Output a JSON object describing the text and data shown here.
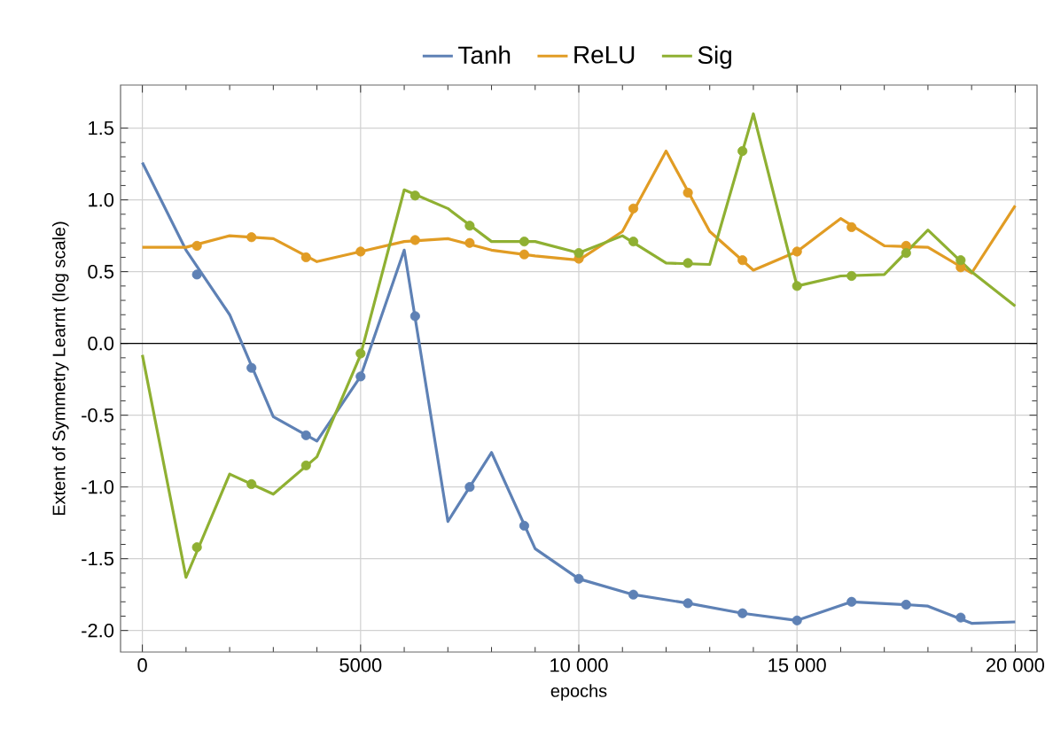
{
  "chart_data": {
    "type": "line",
    "xlabel": "epochs",
    "ylabel": "Extent of Symmetry Learnt (log scale)",
    "xlim": [
      -500,
      20500
    ],
    "ylim": [
      -2.15,
      1.8
    ],
    "xticks": [
      0,
      5000,
      {
        "value": 10000,
        "label": "10 000"
      },
      {
        "value": 15000,
        "label": "15 000"
      },
      {
        "value": 20000,
        "label": "20 000"
      }
    ],
    "yticks": [
      {
        "value": -2.0,
        "label": "-2.0"
      },
      -1.5,
      {
        "value": -1.0,
        "label": "-1.0"
      },
      -0.5,
      {
        "value": 0,
        "label": "0.0"
      },
      0.5,
      {
        "value": 1.0,
        "label": "1.0"
      },
      1.5
    ],
    "grid": true,
    "legend": "top",
    "line_style": "solid",
    "ref_lines": [
      {
        "axis": "y",
        "value": 0,
        "color": "#000000"
      }
    ],
    "series": [
      {
        "name": "Tanh",
        "color": "#5e81b5",
        "marker": "none",
        "x": [
          0,
          1000,
          2000,
          3000,
          4000,
          5000,
          6000,
          7000,
          8000,
          9000,
          10000,
          11250,
          12500,
          13750,
          15000,
          16250,
          17500,
          18000,
          19000,
          20000
        ],
        "values": [
          1.26,
          0.65,
          0.2,
          -0.51,
          -0.68,
          -0.23,
          0.65,
          -1.24,
          -0.76,
          -1.43,
          -1.64,
          -1.75,
          -1.81,
          -1.88,
          -1.93,
          -1.8,
          -1.82,
          -1.83,
          -1.95,
          -1.94
        ]
      },
      {
        "name": "ReLU",
        "color": "#e19c24",
        "marker": "none",
        "x": [
          0,
          1000,
          2000,
          3000,
          4000,
          5000,
          6000,
          7000,
          8000,
          9000,
          10000,
          11000,
          12000,
          13000,
          14000,
          15000,
          16000,
          17000,
          18000,
          19000,
          20000
        ],
        "values": [
          0.67,
          0.67,
          0.75,
          0.73,
          0.57,
          0.64,
          0.71,
          0.73,
          0.65,
          0.61,
          0.58,
          0.78,
          1.34,
          0.78,
          0.51,
          0.64,
          0.87,
          0.68,
          0.67,
          0.49,
          0.96
        ]
      },
      {
        "name": "Sig",
        "color": "#8fb032",
        "marker": "none",
        "x": [
          0,
          1000,
          2000,
          3000,
          4000,
          5000,
          6000,
          7000,
          8000,
          9000,
          10000,
          11000,
          12000,
          13000,
          14000,
          15000,
          16000,
          17000,
          18000,
          19000,
          20000
        ],
        "values": [
          -0.08,
          -1.63,
          -0.91,
          -1.05,
          -0.79,
          -0.08,
          1.07,
          0.94,
          0.71,
          0.71,
          0.63,
          0.75,
          0.56,
          0.55,
          1.6,
          0.4,
          0.47,
          0.48,
          0.79,
          0.5,
          0.26
        ]
      },
      {
        "type": "scatter",
        "color": "#5e81b5",
        "marker": "circle",
        "x": [
          1250,
          2500,
          3750,
          5000,
          6250,
          7500,
          8750,
          10000,
          11250,
          12500,
          13750,
          15000,
          16250,
          17500,
          18750
        ],
        "values": [
          0.48,
          -0.17,
          -0.64,
          -0.23,
          0.19,
          -1.0,
          -1.27,
          -1.64,
          -1.75,
          -1.81,
          -1.88,
          -1.93,
          -1.8,
          -1.82,
          -1.91
        ]
      },
      {
        "type": "scatter",
        "color": "#e19c24",
        "marker": "circle",
        "x": [
          1250,
          2500,
          3750,
          5000,
          6250,
          7500,
          8750,
          10000,
          11250,
          12500,
          13750,
          15000,
          16250,
          17500,
          18750
        ],
        "values": [
          0.68,
          0.74,
          0.6,
          0.64,
          0.72,
          0.7,
          0.62,
          0.59,
          0.94,
          1.05,
          0.58,
          0.64,
          0.81,
          0.68,
          0.53
        ]
      },
      {
        "type": "scatter",
        "color": "#8fb032",
        "marker": "circle",
        "x": [
          1250,
          2500,
          3750,
          5000,
          6250,
          7500,
          8750,
          10000,
          11250,
          12500,
          13750,
          15000,
          16250,
          17500,
          18750
        ],
        "values": [
          -1.42,
          -0.98,
          -0.85,
          -0.07,
          1.03,
          0.82,
          0.71,
          0.63,
          0.71,
          0.56,
          1.34,
          0.4,
          0.47,
          0.63,
          0.58
        ]
      }
    ]
  }
}
